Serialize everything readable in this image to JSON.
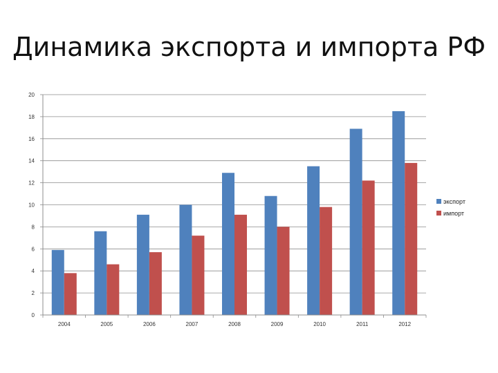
{
  "title": "Динамика экспорта и импорта РФ",
  "chart_data": {
    "type": "bar",
    "categories": [
      "2004",
      "2005",
      "2006",
      "2007",
      "2008",
      "2009",
      "2010",
      "2011",
      "2012"
    ],
    "series": [
      {
        "name": "экспорт",
        "color": "#4F81BD",
        "values": [
          5.9,
          7.6,
          9.1,
          10.0,
          12.9,
          10.8,
          13.5,
          16.9,
          18.5
        ]
      },
      {
        "name": "импорт",
        "color": "#C0504D",
        "values": [
          3.8,
          4.6,
          5.7,
          7.2,
          9.1,
          8.0,
          9.8,
          12.2,
          13.8
        ]
      }
    ],
    "ylim": [
      0,
      20
    ],
    "yticks": [
      0,
      2,
      4,
      6,
      8,
      10,
      12,
      14,
      16,
      18,
      20
    ],
    "grid": true,
    "legend": "right"
  }
}
